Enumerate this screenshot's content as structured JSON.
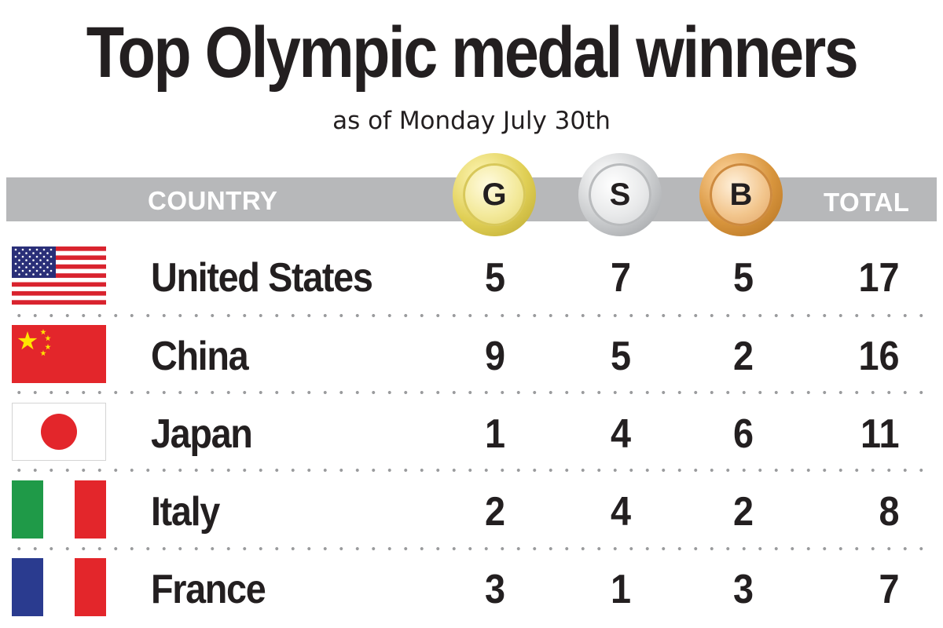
{
  "title": "Top Olympic medal winners",
  "subtitle": "as of Monday July 30th",
  "columns": {
    "country": "COUNTRY",
    "gold": "G",
    "silver": "S",
    "bronze": "B",
    "total": "TOTAL"
  },
  "colors": {
    "header_bar": "#b7b8ba",
    "gold": "#e0cf55",
    "silver": "#c9cbcd",
    "bronze": "#d8953d",
    "text": "#231f20"
  },
  "chart_data": {
    "type": "table",
    "title": "Top Olympic medal winners",
    "subtitle": "as of Monday July 30th",
    "headers": [
      "COUNTRY",
      "G",
      "S",
      "B",
      "TOTAL"
    ],
    "rows": [
      {
        "country": "United States",
        "flag": "us-flag-icon",
        "gold": 5,
        "silver": 7,
        "bronze": 5,
        "total": 17
      },
      {
        "country": "China",
        "flag": "china-flag-icon",
        "gold": 9,
        "silver": 5,
        "bronze": 2,
        "total": 16
      },
      {
        "country": "Japan",
        "flag": "japan-flag-icon",
        "gold": 1,
        "silver": 4,
        "bronze": 6,
        "total": 11
      },
      {
        "country": "Italy",
        "flag": "italy-flag-icon",
        "gold": 2,
        "silver": 4,
        "bronze": 2,
        "total": 8
      },
      {
        "country": "France",
        "flag": "france-flag-icon",
        "gold": 3,
        "silver": 1,
        "bronze": 3,
        "total": 7
      }
    ]
  }
}
